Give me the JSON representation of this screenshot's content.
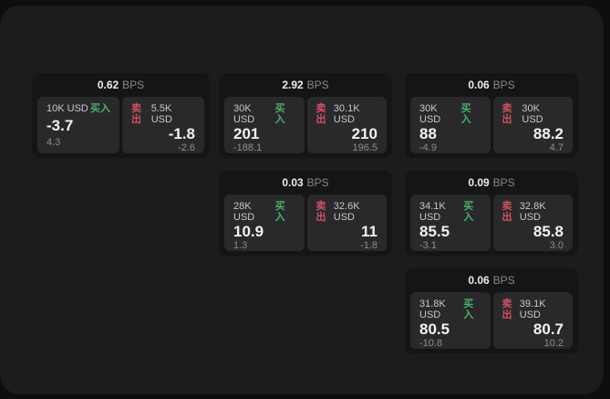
{
  "labels": {
    "buy_action": "买入",
    "sell_action": "卖出",
    "bps_unit": "BPS"
  },
  "colors": {
    "page_background": "#0e0e0e",
    "window_background": "#1c1c1e",
    "card_background": "#151516",
    "cell_background": "#29292b",
    "buy_green": "#4caf70",
    "sell_red": "#d15064",
    "primary_text": "#f2f2f4",
    "muted_text": "#8e8e92"
  },
  "grid": {
    "columns": [
      {
        "cards": [
          {
            "header": {
              "value": "0.62",
              "unit": "BPS"
            },
            "buy": {
              "amount": "10K USD",
              "action": "买入",
              "price": "-3.7",
              "change": "4.3"
            },
            "sell": {
              "action": "卖出",
              "amount": "5.5K USD",
              "price": "-1.8",
              "change": "-2.6"
            }
          }
        ]
      },
      {
        "cards": [
          {
            "header": {
              "value": "2.92",
              "unit": "BPS"
            },
            "buy": {
              "amount": "30K USD",
              "action": "买入",
              "price": "201",
              "change": "-188.1"
            },
            "sell": {
              "action": "卖出",
              "amount": "30.1K USD",
              "price": "210",
              "change": "196.5"
            }
          },
          {
            "header": {
              "value": "0.03",
              "unit": "BPS"
            },
            "buy": {
              "amount": "28K USD",
              "action": "买入",
              "price": "10.9",
              "change": "1.3"
            },
            "sell": {
              "action": "卖出",
              "amount": "32.6K USD",
              "price": "11",
              "change": "-1.8"
            }
          }
        ]
      },
      {
        "cards": [
          {
            "header": {
              "value": "0.06",
              "unit": "BPS"
            },
            "buy": {
              "amount": "30K USD",
              "action": "买入",
              "price": "88",
              "change": "-4.9"
            },
            "sell": {
              "action": "卖出",
              "amount": "30K USD",
              "price": "88.2",
              "change": "4.7"
            }
          },
          {
            "header": {
              "value": "0.09",
              "unit": "BPS"
            },
            "buy": {
              "amount": "34.1K USD",
              "action": "买入",
              "price": "85.5",
              "change": "-3.1"
            },
            "sell": {
              "action": "卖出",
              "amount": "32.8K USD",
              "price": "85.8",
              "change": "3.0"
            }
          },
          {
            "header": {
              "value": "0.06",
              "unit": "BPS"
            },
            "buy": {
              "amount": "31.8K USD",
              "action": "买入",
              "price": "80.5",
              "change": "-10.8"
            },
            "sell": {
              "action": "卖出",
              "amount": "39.1K USD",
              "price": "80.7",
              "change": "10.2"
            }
          }
        ]
      }
    ]
  }
}
